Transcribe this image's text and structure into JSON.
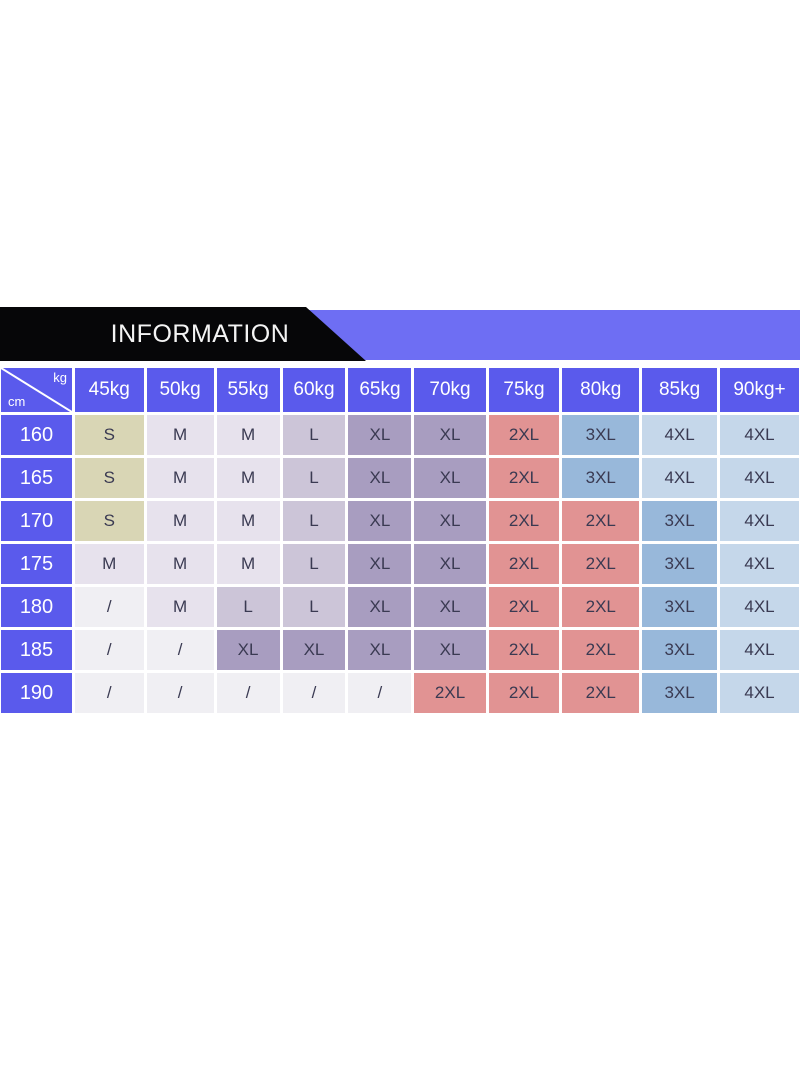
{
  "banner": {
    "title": "INFORMATION",
    "bar_color": "#6e6ef3",
    "ribbon_color": "#060608",
    "title_color": "#f4f4f4"
  },
  "chart_data": {
    "type": "table",
    "title": "INFORMATION",
    "corner_top_label": "kg",
    "corner_bottom_label": "cm",
    "columns": [
      "45kg",
      "50kg",
      "55kg",
      "60kg",
      "65kg",
      "70kg",
      "75kg",
      "80kg",
      "85kg",
      "90kg+"
    ],
    "rows": [
      {
        "cm": "160",
        "values": [
          "S",
          "M",
          "M",
          "L",
          "XL",
          "XL",
          "2XL",
          "3XL",
          "4XL",
          "4XL"
        ]
      },
      {
        "cm": "165",
        "values": [
          "S",
          "M",
          "M",
          "L",
          "XL",
          "XL",
          "2XL",
          "3XL",
          "4XL",
          "4XL"
        ]
      },
      {
        "cm": "170",
        "values": [
          "S",
          "M",
          "M",
          "L",
          "XL",
          "XL",
          "2XL",
          "2XL",
          "3XL",
          "4XL"
        ]
      },
      {
        "cm": "175",
        "values": [
          "M",
          "M",
          "M",
          "L",
          "XL",
          "XL",
          "2XL",
          "2XL",
          "3XL",
          "4XL"
        ]
      },
      {
        "cm": "180",
        "values": [
          "/",
          "M",
          "L",
          "L",
          "XL",
          "XL",
          "2XL",
          "2XL",
          "3XL",
          "4XL"
        ]
      },
      {
        "cm": "185",
        "values": [
          "/",
          "/",
          "XL",
          "XL",
          "XL",
          "XL",
          "2XL",
          "2XL",
          "3XL",
          "4XL"
        ]
      },
      {
        "cm": "190",
        "values": [
          "/",
          "/",
          "/",
          "/",
          "/",
          "2XL",
          "2XL",
          "2XL",
          "3XL",
          "4XL"
        ]
      }
    ],
    "size_colors": {
      "S": "#d9d6b5",
      "M": "#e7e2ed",
      "L": "#ccc5d8",
      "XL": "#a89dc0",
      "2XL": "#e19393",
      "3XL": "#98b8da",
      "4XL": "#c5d7ea",
      "/": "#f0eff3"
    },
    "header_bg": "#5a5aec",
    "header_text_color": "#ffffff",
    "cell_text_color": "#3a3a52",
    "grid_line_color": "#ffffff"
  }
}
